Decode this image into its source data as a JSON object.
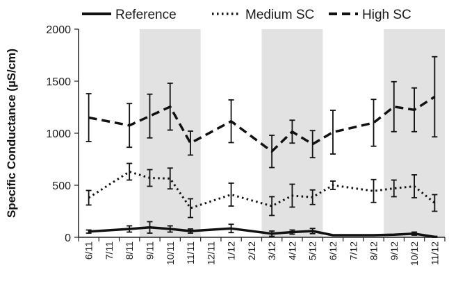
{
  "chart_data": {
    "type": "line",
    "title": "",
    "xlabel": "",
    "ylabel": "Specific Conductance (µS/cm)",
    "ylim": [
      0,
      2000
    ],
    "yticks": [
      "0",
      "500",
      "1000",
      "1500",
      "2000"
    ],
    "categories": [
      "6/11",
      "7/11",
      "8/11",
      "9/11",
      "10/11",
      "11/11",
      "12/11",
      "1/12",
      "2/12",
      "3/12",
      "4/12",
      "5/12",
      "6/12",
      "7/12",
      "8/12",
      "9/12",
      "10/12",
      "11/12"
    ],
    "shaded_periods": [
      [
        3,
        5
      ],
      [
        9,
        11
      ],
      [
        15,
        17
      ]
    ],
    "grid": false,
    "legend": "top",
    "series": [
      {
        "name": "Reference",
        "style": "solid",
        "values": [
          55,
          null,
          80,
          95,
          80,
          60,
          null,
          85,
          null,
          35,
          50,
          60,
          20,
          20,
          20,
          25,
          35,
          5
        ],
        "errors": [
          15,
          null,
          30,
          55,
          30,
          20,
          null,
          40,
          null,
          25,
          20,
          25,
          0,
          0,
          0,
          0,
          15,
          5
        ]
      },
      {
        "name": "Medium SC",
        "style": "dotted",
        "values": [
          380,
          null,
          630,
          570,
          565,
          280,
          null,
          410,
          null,
          300,
          400,
          385,
          500,
          null,
          445,
          470,
          490,
          330
        ],
        "errors": [
          70,
          null,
          80,
          80,
          100,
          90,
          null,
          110,
          null,
          90,
          110,
          70,
          40,
          null,
          110,
          80,
          110,
          80
        ]
      },
      {
        "name": "High SC",
        "style": "dashed",
        "values": [
          1150,
          null,
          1075,
          1165,
          1255,
          905,
          null,
          1115,
          null,
          825,
          1015,
          895,
          1010,
          null,
          1100,
          1255,
          1225,
          1350
        ],
        "errors": [
          230,
          null,
          210,
          210,
          225,
          115,
          null,
          205,
          null,
          155,
          110,
          130,
          210,
          null,
          225,
          240,
          210,
          385
        ]
      }
    ]
  }
}
